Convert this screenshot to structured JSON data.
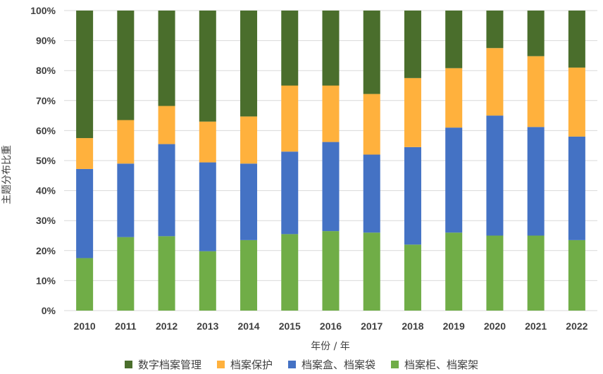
{
  "chart_data": {
    "type": "bar",
    "stacked": true,
    "normalized": true,
    "categories": [
      "2010",
      "2011",
      "2012",
      "2013",
      "2014",
      "2015",
      "2016",
      "2017",
      "2018",
      "2019",
      "2020",
      "2021",
      "2022"
    ],
    "series": [
      {
        "name": "档案柜、档案架",
        "color": "#70ad47",
        "values": [
          17.5,
          24.5,
          24.8,
          19.8,
          23.5,
          25.5,
          26.5,
          26.0,
          22.0,
          26.0,
          25.0,
          25.0,
          23.5
        ]
      },
      {
        "name": "档案盒、档案袋",
        "color": "#4472c4",
        "values": [
          29.7,
          24.5,
          30.7,
          29.6,
          25.5,
          27.5,
          29.7,
          26.0,
          32.5,
          35.0,
          40.0,
          36.2,
          34.5
        ]
      },
      {
        "name": "档案保护",
        "color": "#ffb13d",
        "values": [
          10.3,
          14.5,
          12.7,
          13.6,
          15.7,
          22.0,
          18.8,
          20.2,
          23.0,
          19.8,
          22.5,
          23.6,
          23.0
        ]
      },
      {
        "name": "数字档案管理",
        "color": "#4a6e2c",
        "values": [
          42.5,
          36.5,
          31.8,
          37.0,
          35.3,
          25.0,
          25.0,
          27.8,
          22.5,
          19.2,
          12.5,
          15.2,
          19.0
        ]
      }
    ],
    "legend_order": [
      "数字档案管理",
      "档案保护",
      "档案盒、档案袋",
      "档案柜、档案架"
    ],
    "yticks": [
      "0%",
      "10%",
      "20%",
      "30%",
      "40%",
      "50%",
      "60%",
      "70%",
      "80%",
      "90%",
      "100%"
    ],
    "ylim": [
      0,
      100
    ],
    "xlabel": "年份 / 年",
    "ylabel": "主题分布比重",
    "grid": true,
    "legend_position": "bottom"
  }
}
